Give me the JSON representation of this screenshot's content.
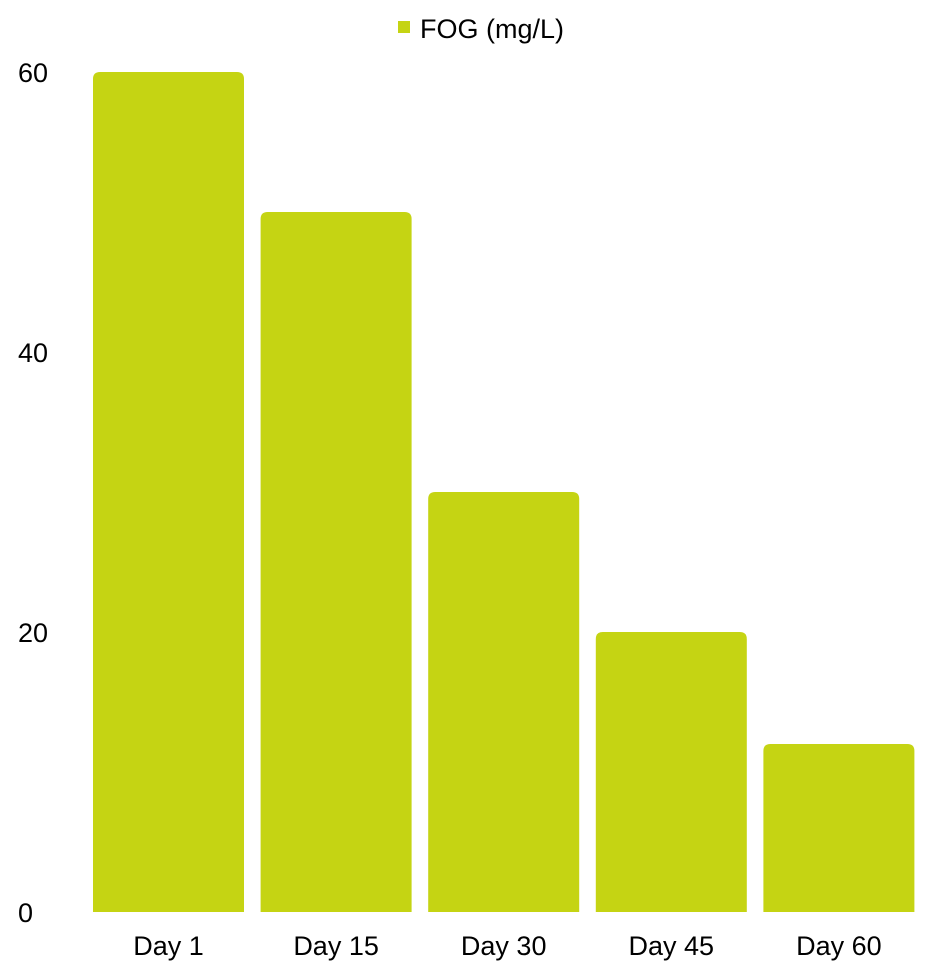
{
  "chart_data": {
    "type": "bar",
    "categories": [
      "Day 1",
      "Day 15",
      "Day 30",
      "Day 45",
      "Day 60"
    ],
    "series": [
      {
        "name": "FOG (mg/L)",
        "values": [
          60,
          50,
          30,
          20,
          12
        ],
        "color": "#c5d413"
      }
    ],
    "yticks": [
      "0",
      "20",
      "40",
      "60"
    ],
    "ylim": [
      0,
      60
    ],
    "grid": false,
    "legend": "top-center"
  }
}
